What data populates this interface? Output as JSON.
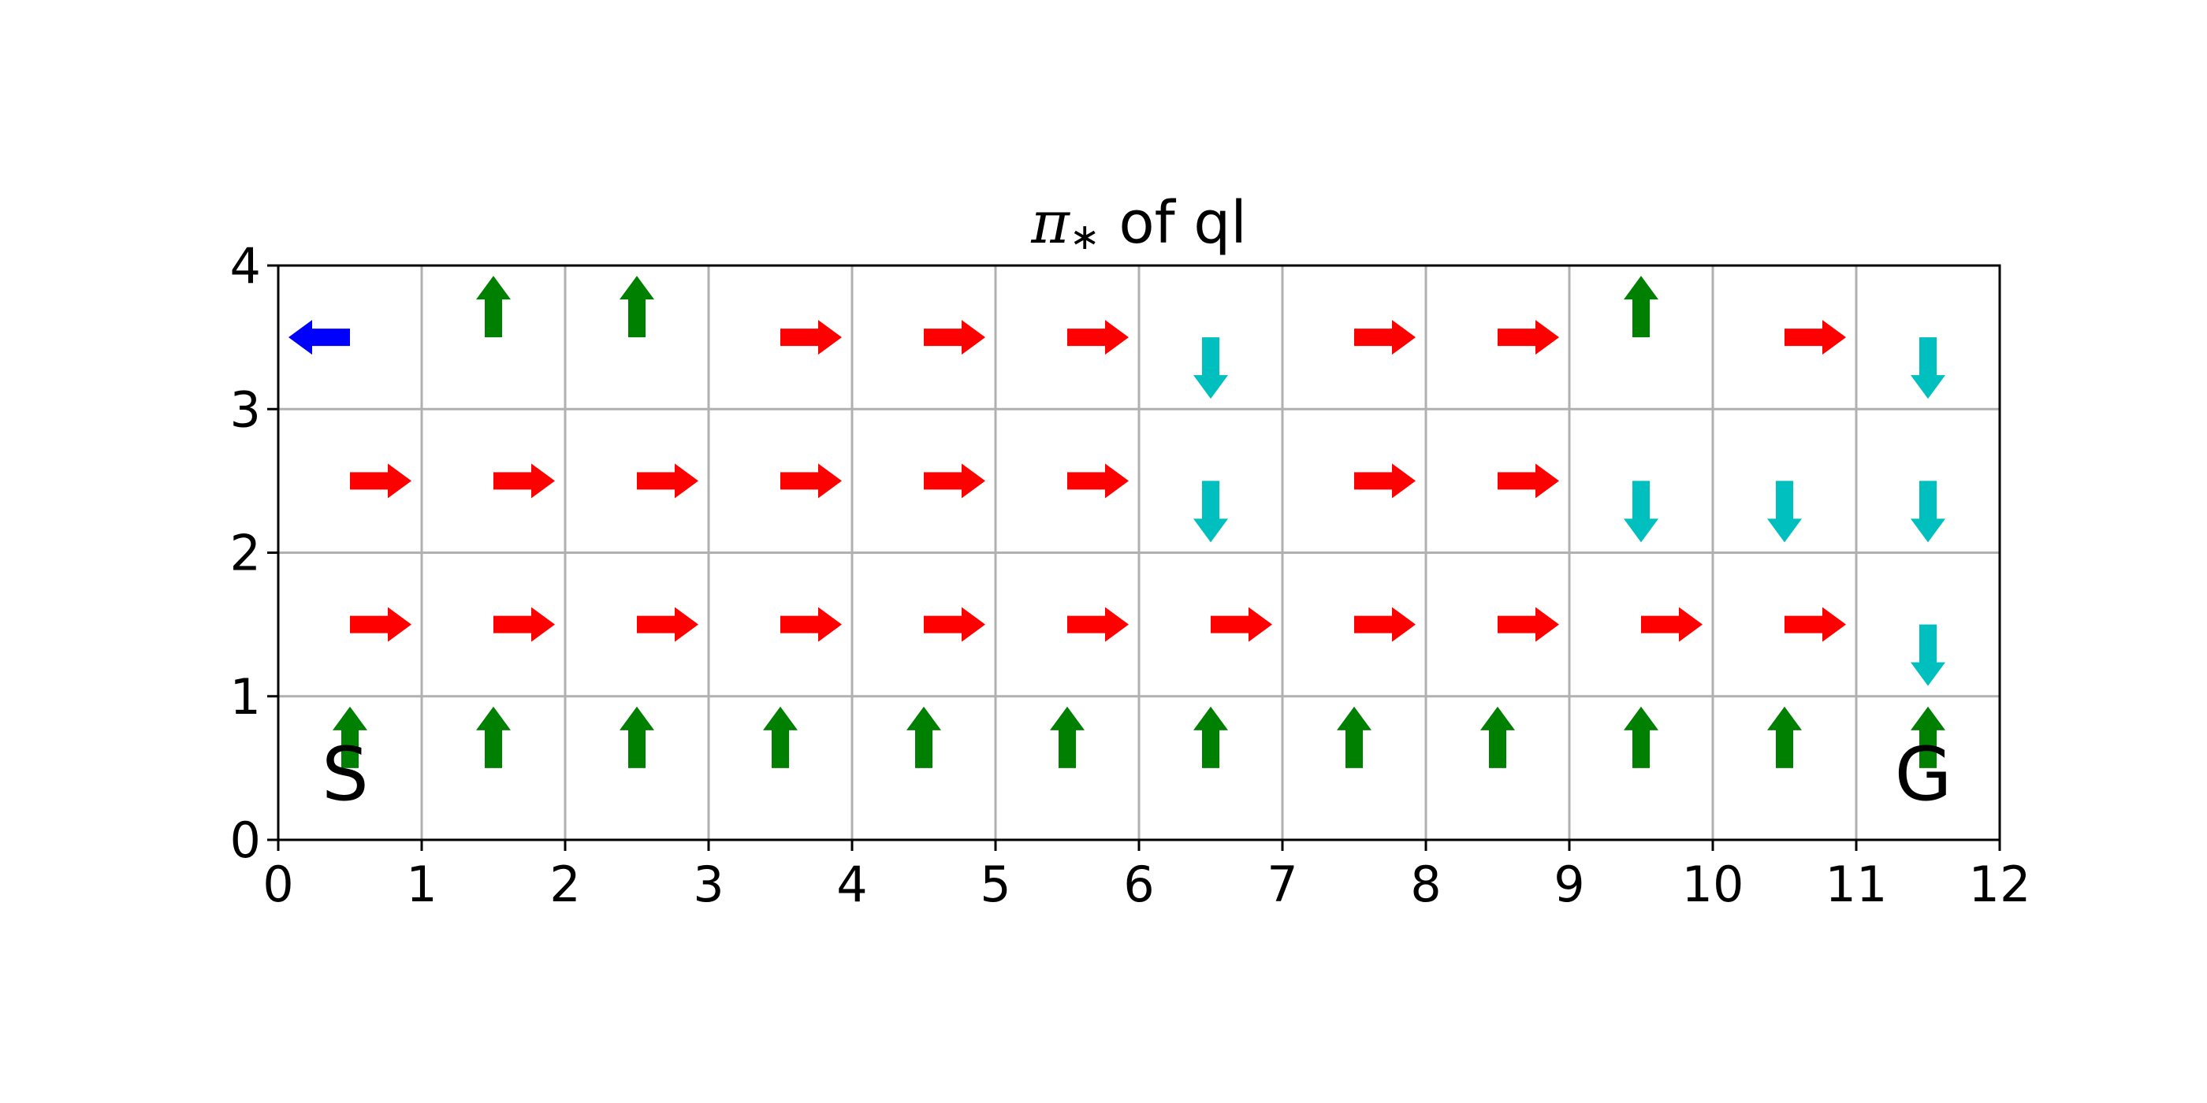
{
  "chart_data": {
    "type": "grid-policy",
    "title": {
      "symbol": "π",
      "subscript": "∗",
      "text": "of ql"
    },
    "xlim": [
      0,
      12
    ],
    "ylim": [
      0,
      4
    ],
    "x_ticks": [
      "0",
      "1",
      "2",
      "3",
      "4",
      "5",
      "6",
      "7",
      "8",
      "9",
      "10",
      "11",
      "12"
    ],
    "y_ticks": [
      "0",
      "1",
      "2",
      "3",
      "4"
    ],
    "grid": true,
    "colors": {
      "up": "#008000",
      "right": "#ff0000",
      "down": "#00bfbf",
      "left": "#0000ff"
    },
    "policy_rows_top_to_bottom": [
      [
        "left",
        "up",
        "up",
        "right",
        "right",
        "right",
        "down",
        "right",
        "right",
        "up",
        "right",
        "down"
      ],
      [
        "right",
        "right",
        "right",
        "right",
        "right",
        "right",
        "down",
        "right",
        "right",
        "down",
        "down",
        "down"
      ],
      [
        "right",
        "right",
        "right",
        "right",
        "right",
        "right",
        "right",
        "right",
        "right",
        "right",
        "right",
        "down"
      ],
      [
        "up",
        "up",
        "up",
        "up",
        "up",
        "up",
        "up",
        "up",
        "up",
        "up",
        "up",
        "up"
      ]
    ],
    "markers": [
      {
        "label": "S",
        "x": 0.5,
        "y": 0.5
      },
      {
        "label": "G",
        "x": 11.5,
        "y": 0.5
      }
    ]
  }
}
